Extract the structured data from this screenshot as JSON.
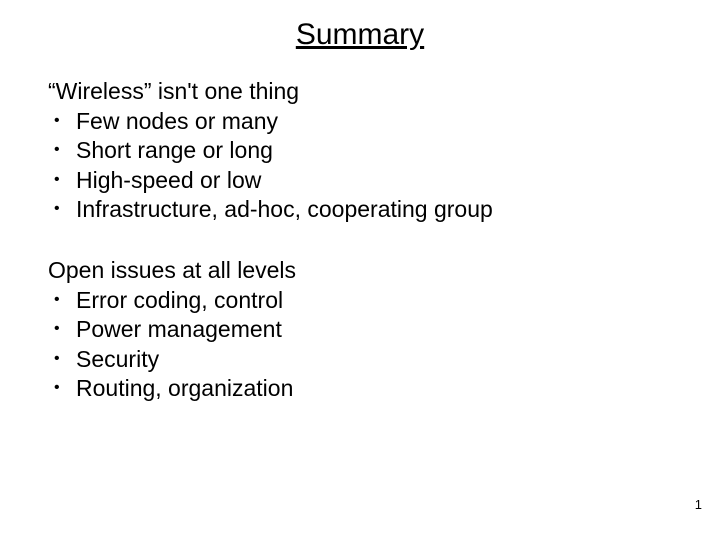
{
  "title": "Summary",
  "sections": [
    {
      "heading": "“Wireless” isn't one thing",
      "bullets": [
        "Few nodes or many",
        "Short range or long",
        "High-speed or low",
        "Infrastructure, ad-hoc, cooperating group"
      ]
    },
    {
      "heading": "Open issues at all levels",
      "bullets": [
        "Error coding, control",
        "Power management",
        "Security",
        "Routing, organization"
      ]
    }
  ],
  "page_number": "1",
  "colors": {
    "background": "#ffffff",
    "text": "#000000"
  },
  "typography": {
    "title_fontsize": 30,
    "body_fontsize": 23,
    "pagenum_fontsize": 13,
    "font_family": "Arial"
  }
}
